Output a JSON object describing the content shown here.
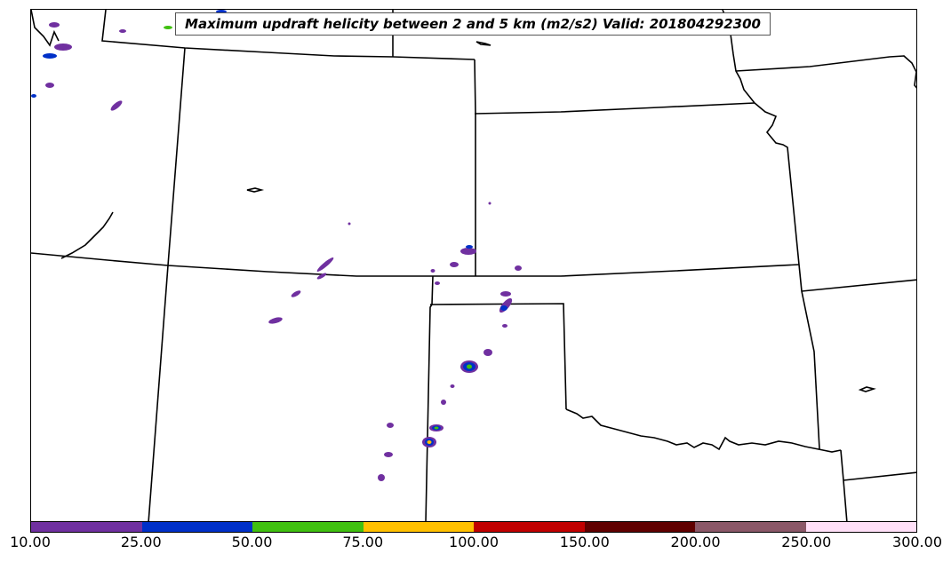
{
  "map": {
    "title": "Maximum updraft helicity between 2 and 5 km (m2/s2) Valid: 201804292300"
  },
  "colorbar": {
    "ticks": [
      "10.00",
      "25.00",
      "50.00",
      "75.00",
      "100.00",
      "150.00",
      "200.00",
      "250.00",
      "300.00"
    ],
    "colors": [
      "#7030a0",
      "#0030c8",
      "#40c010",
      "#ffc000",
      "#c00000",
      "#600000",
      "#8b5868",
      "#ffe0f8"
    ],
    "levels": [
      10,
      25,
      50,
      75,
      100,
      150,
      200,
      250,
      300
    ],
    "units": "m2/s2"
  },
  "layers": {
    "boundaries": "state-borders",
    "field": "updraft-helicity-swaths"
  }
}
